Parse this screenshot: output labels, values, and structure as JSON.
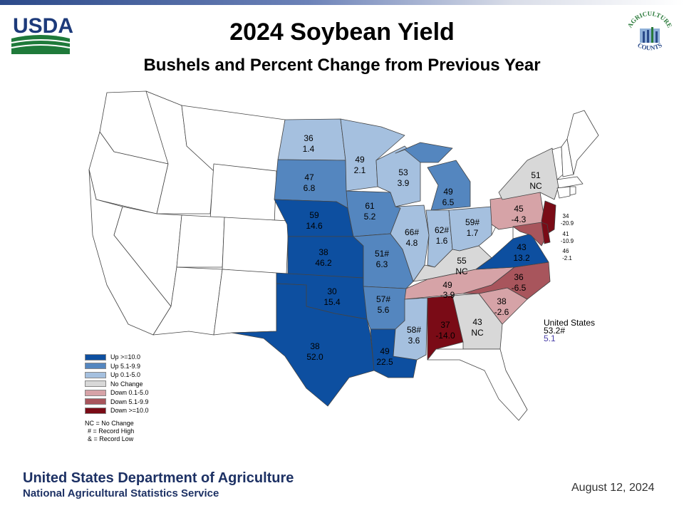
{
  "header": {
    "title": "2024 Soybean Yield",
    "subtitle": "Bushels and Percent Change from Previous Year",
    "usda_logo_text": "USDA",
    "ag_logo_text_top": "AGRICULTURE",
    "ag_logo_text_bottom": "COUNTS"
  },
  "colors": {
    "up_10": "#0d4fa0",
    "up_5": "#5486bf",
    "up_0": "#a5c0df",
    "no_change": "#d8d8d8",
    "down_0": "#d6a3a7",
    "down_5": "#a8555c",
    "down_10": "#7a0b16",
    "none": "#ffffff"
  },
  "legend": {
    "items": [
      {
        "label": "Up >=10.0",
        "color": "#0d4fa0"
      },
      {
        "label": "Up 5.1-9.9",
        "color": "#5486bf"
      },
      {
        "label": "Up 0.1-5.0",
        "color": "#a5c0df"
      },
      {
        "label": "No Change",
        "color": "#d8d8d8"
      },
      {
        "label": "Down 0.1-5.0",
        "color": "#d6a3a7"
      },
      {
        "label": "Down 5.1-9.9",
        "color": "#a8555c"
      },
      {
        "label": "Down >=10.0",
        "color": "#7a0b16"
      }
    ],
    "notes": [
      "NC = No Change",
      "# = Record High",
      "& = Record Low"
    ]
  },
  "states": {
    "ND": {
      "yield": "36",
      "change": "1.4"
    },
    "MN": {
      "yield": "49",
      "change": "2.1"
    },
    "SD": {
      "yield": "47",
      "change": "6.8"
    },
    "WI": {
      "yield": "53",
      "change": "3.9"
    },
    "MI": {
      "yield": "49",
      "change": "6.5"
    },
    "NE": {
      "yield": "59",
      "change": "14.6"
    },
    "IA": {
      "yield": "61",
      "change": "5.2"
    },
    "IL": {
      "yield": "66#",
      "change": "4.8"
    },
    "IN": {
      "yield": "62#",
      "change": "1.6"
    },
    "OH": {
      "yield": "59#",
      "change": "1.7"
    },
    "KS": {
      "yield": "38",
      "change": "46.2"
    },
    "MO": {
      "yield": "51#",
      "change": "6.3"
    },
    "KY": {
      "yield": "55",
      "change": "NC"
    },
    "OK": {
      "yield": "30",
      "change": "15.4"
    },
    "AR": {
      "yield": "57#",
      "change": "5.6"
    },
    "TN": {
      "yield": "49",
      "change": "-3.9"
    },
    "TX": {
      "yield": "38",
      "change": "52.0"
    },
    "LA": {
      "yield": "49",
      "change": "22.5"
    },
    "MS": {
      "yield": "58#",
      "change": "3.6"
    },
    "AL": {
      "yield": "37",
      "change": "-14.0"
    },
    "GA": {
      "yield": "43",
      "change": "NC"
    },
    "SC": {
      "yield": "38",
      "change": "-2.6"
    },
    "NC": {
      "yield": "36",
      "change": "-6.5"
    },
    "VA": {
      "yield": "43",
      "change": "13.2"
    },
    "PA": {
      "yield": "45",
      "change": "-4.3"
    },
    "NY": {
      "yield": "51",
      "change": "NC"
    },
    "NJ": {
      "yield": "34",
      "change": "-20.9"
    },
    "DE": {
      "yield": "41",
      "change": "-10.9"
    },
    "MD": {
      "yield": "46",
      "change": "-2.1"
    }
  },
  "us_total": {
    "label": "United States",
    "yield": "53.2#",
    "change": "5.1"
  },
  "footer": {
    "department": "United States Department of Agriculture",
    "agency": "National Agricultural Statistics Service",
    "date": "August 12, 2024"
  }
}
